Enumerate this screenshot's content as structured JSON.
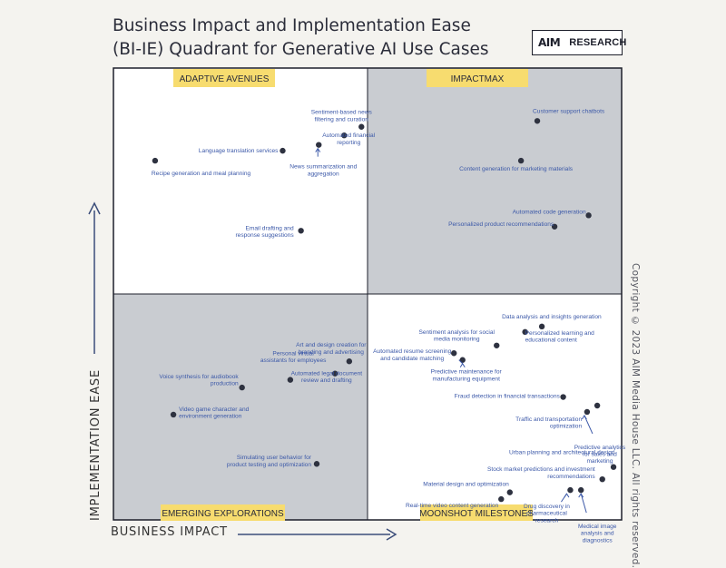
{
  "header": {
    "title_line1": "Business Impact and Implementation Ease",
    "title_line2": "(BI-IE) Quadrant for Generative AI Use Cases",
    "logo_mark": "AIM",
    "logo_word": "RESEARCH"
  },
  "copyright": "Copyright © 2023 AIM Media House LLC. All rights reserved.",
  "colors": {
    "shaded_quadrant": "#c9ccd1",
    "white_quadrant": "#ffffff",
    "label_bg": "#f7dc6f",
    "point": "#2e3240",
    "point_label": "#3b58a8",
    "axis_arrow": "#3b4d7a",
    "border": "#1d1f2b"
  },
  "chart_data": {
    "type": "scatter",
    "xlabel": "BUSINESS IMPACT",
    "ylabel": "IMPLEMENTATION EASE",
    "xlim": [
      0,
      100
    ],
    "ylim": [
      0,
      100
    ],
    "quadrants": [
      {
        "name": "ADAPTIVE AVENUES",
        "position": "top-left",
        "shaded": false
      },
      {
        "name": "IMPACTMAX",
        "position": "top-right",
        "shaded": true
      },
      {
        "name": "EMERGING EXPLORATIONS",
        "position": "bottom-left",
        "shaded": true
      },
      {
        "name": "MOONSHOT MILESTONES",
        "position": "bottom-right",
        "shaded": false
      }
    ],
    "points": [
      {
        "label": [
          "Sentiment-based news",
          "filtering and curation"
        ],
        "x": 48.8,
        "y": 87.0
      },
      {
        "label": [
          "Automated financial",
          "reporting"
        ],
        "x": 45.4,
        "y": 85.1
      },
      {
        "label": [
          "Language translation services"
        ],
        "x": 33.3,
        "y": 81.7
      },
      {
        "label": [
          "News summarization and",
          "aggregation"
        ],
        "x": 40.4,
        "y": 83.0
      },
      {
        "label": [
          "Recipe generation and meal planning"
        ],
        "x": 8.2,
        "y": 79.5
      },
      {
        "label": [
          "Email drafting and",
          "response suggestions"
        ],
        "x": 36.9,
        "y": 64.0
      },
      {
        "label": [
          "Art and design creation for",
          "branding and advertising"
        ],
        "x": 46.4,
        "y": 35.1
      },
      {
        "label": [
          "Personal virtual",
          "assistants for employees"
        ],
        "x": 43.6,
        "y": 32.4
      },
      {
        "label": [
          "Automated legal document",
          "review and drafting"
        ],
        "x": 34.8,
        "y": 31.0
      },
      {
        "label": [
          "Voice synthesis for audiobook",
          "production"
        ],
        "x": 25.3,
        "y": 29.3
      },
      {
        "label": [
          "Customer support chatbots"
        ],
        "x": 83.4,
        "y": 88.3
      },
      {
        "label": [
          "Content generation for marketing materials"
        ],
        "x": 80.2,
        "y": 79.5
      },
      {
        "label": [
          "Automated code generation"
        ],
        "x": 93.5,
        "y": 67.4
      },
      {
        "label": [
          "Personalized product recommendations"
        ],
        "x": 86.8,
        "y": 64.9
      },
      {
        "label": [
          "Data analysis and insights generation"
        ],
        "x": 84.3,
        "y": 42.8
      },
      {
        "label": [
          "Sentiment analysis for social",
          "media monitoring"
        ],
        "x": 75.4,
        "y": 38.6
      },
      {
        "label": [
          "Personalized learning and",
          "educational content"
        ],
        "x": 81.0,
        "y": 41.6
      },
      {
        "label": [
          "Automated resume screening",
          "and candidate matching"
        ],
        "x": 67.0,
        "y": 36.9
      },
      {
        "label": [
          "Predictive maintenance for",
          "manufacturing equipment"
        ],
        "x": 68.7,
        "y": 35.4
      },
      {
        "label": [
          "Fraud detection in financial transactions"
        ],
        "x": 88.5,
        "y": 27.2
      },
      {
        "label": [
          "Traffic and transportation",
          "optimization"
        ],
        "x": 95.2,
        "y": 25.3
      },
      {
        "label": [
          "Predictive analytics",
          "for sales and",
          "marketing"
        ],
        "x": 93.2,
        "y": 23.9
      },
      {
        "label": [
          "Video game character and",
          "environment generation"
        ],
        "x": 11.8,
        "y": 23.3
      },
      {
        "label": [
          "Simulating user behavior for",
          "product testing and optimization"
        ],
        "x": 40.0,
        "y": 12.4
      },
      {
        "label": [
          "Urban planning and architectural design"
        ],
        "x": 98.4,
        "y": 11.7
      },
      {
        "label": [
          "Stock market predictions and investment",
          "recommendations"
        ],
        "x": 96.2,
        "y": 9.0
      },
      {
        "label": [
          "Material design and optimization"
        ],
        "x": 78.0,
        "y": 6.1
      },
      {
        "label": [
          "Real-time video content generation"
        ],
        "x": 76.3,
        "y": 4.6
      },
      {
        "label": [
          "Drug discovery in",
          "pharmaceutical",
          "research"
        ],
        "x": 89.9,
        "y": 6.6
      },
      {
        "label": [
          "Medical image",
          "analysis and",
          "diagnostics"
        ],
        "x": 92.0,
        "y": 6.6
      }
    ]
  }
}
